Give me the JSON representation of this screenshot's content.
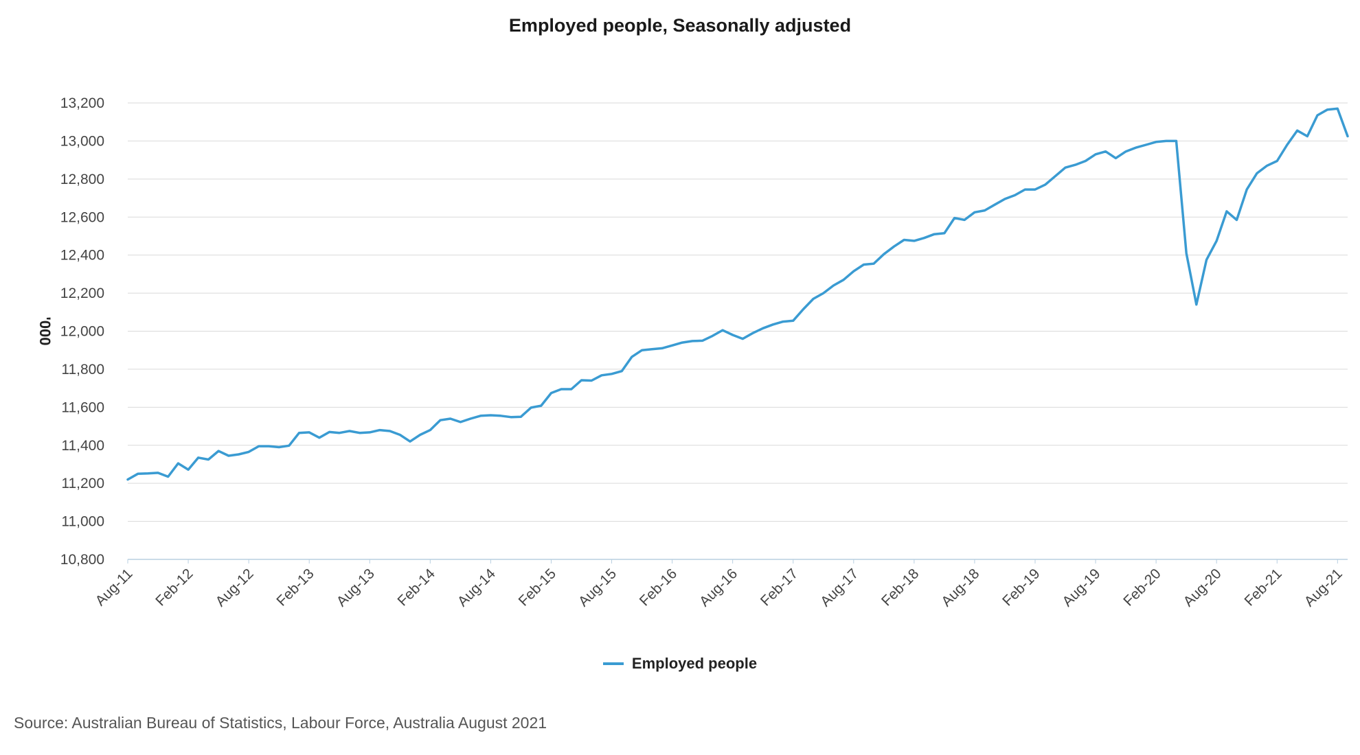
{
  "chart_data": {
    "type": "line",
    "title": "Employed people, Seasonally adjusted",
    "ylabel": "'000",
    "xlabel": "",
    "ylim": [
      10800,
      13200
    ],
    "yticks": [
      "10,800",
      "11,000",
      "11,200",
      "11,400",
      "11,600",
      "11,800",
      "12,000",
      "12,200",
      "12,400",
      "12,600",
      "12,800",
      "13,000",
      "13,200"
    ],
    "xticks": [
      "Aug-11",
      "Feb-12",
      "Aug-12",
      "Feb-13",
      "Aug-13",
      "Feb-14",
      "Aug-14",
      "Feb-15",
      "Aug-15",
      "Feb-16",
      "Aug-16",
      "Feb-17",
      "Aug-17",
      "Feb-18",
      "Aug-18",
      "Feb-19",
      "Aug-19",
      "Feb-20",
      "Aug-20",
      "Feb-21",
      "Aug-21"
    ],
    "grid": true,
    "legend_position": "bottom",
    "color": "#3a9bd2",
    "series": [
      {
        "name": "Employed people",
        "start_month": "Aug-11",
        "frequency": "monthly",
        "values": [
          11220,
          11250,
          11252,
          11255,
          11235,
          11305,
          11272,
          11335,
          11325,
          11370,
          11345,
          11352,
          11365,
          11395,
          11395,
          11390,
          11398,
          11465,
          11468,
          11440,
          11470,
          11465,
          11475,
          11465,
          11468,
          11480,
          11475,
          11455,
          11420,
          11455,
          11480,
          11532,
          11540,
          11522,
          11540,
          11555,
          11558,
          11555,
          11548,
          11550,
          11598,
          11608,
          11675,
          11695,
          11695,
          11742,
          11740,
          11768,
          11775,
          11790,
          11865,
          11900,
          11905,
          11910,
          11925,
          11940,
          11948,
          11950,
          11975,
          12005,
          11980,
          11960,
          11990,
          12015,
          12035,
          12050,
          12055,
          12115,
          12170,
          12200,
          12240,
          12270,
          12315,
          12350,
          12355,
          12405,
          12445,
          12480,
          12475,
          12490,
          12510,
          12515,
          12595,
          12585,
          12625,
          12635,
          12665,
          12695,
          12715,
          12745,
          12745,
          12770,
          12815,
          12860,
          12875,
          12895,
          12930,
          12945,
          12910,
          12945,
          12965,
          12980,
          12995,
          13000,
          13000,
          12410,
          12140,
          12375,
          12475,
          12630,
          12585,
          12745,
          12830,
          12870,
          12895,
          12980,
          13055,
          13025,
          13135,
          13165,
          13170,
          13025
        ]
      }
    ]
  },
  "legend": {
    "label": "Employed people"
  },
  "source": "Source: Australian Bureau of Statistics, Labour Force, Australia August 2021"
}
